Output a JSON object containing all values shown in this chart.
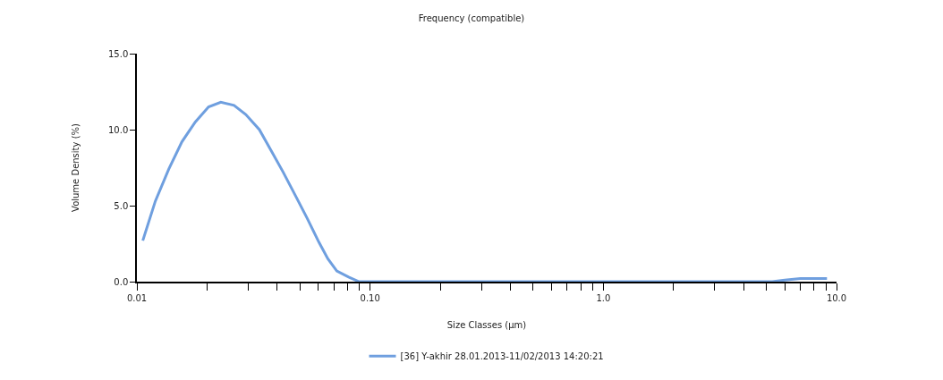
{
  "chart_data": {
    "type": "line",
    "title": "Frequency (compatible)",
    "xlabel": "Size Classes (µm)",
    "ylabel": "Volume Density (%)",
    "log": "x",
    "grid": false,
    "legend": "bottom",
    "marker": "none",
    "line_style": "solid",
    "xlim": [
      0.01,
      10
    ],
    "xticks": [
      {
        "value": 0.01,
        "label": "0.01"
      },
      {
        "value": 0.02,
        "label": null
      },
      {
        "value": 0.03,
        "label": null
      },
      {
        "value": 0.04,
        "label": null
      },
      {
        "value": 0.05,
        "label": null
      },
      {
        "value": 0.06,
        "label": null
      },
      {
        "value": 0.07,
        "label": null
      },
      {
        "value": 0.08,
        "label": null
      },
      {
        "value": 0.09,
        "label": null
      },
      {
        "value": 0.1,
        "label": "0.10"
      },
      {
        "value": 0.2,
        "label": null
      },
      {
        "value": 0.3,
        "label": null
      },
      {
        "value": 0.4,
        "label": null
      },
      {
        "value": 0.5,
        "label": null
      },
      {
        "value": 0.6,
        "label": null
      },
      {
        "value": 0.7,
        "label": null
      },
      {
        "value": 0.8,
        "label": null
      },
      {
        "value": 0.9,
        "label": null
      },
      {
        "value": 1,
        "label": "1.0"
      },
      {
        "value": 2,
        "label": null
      },
      {
        "value": 3,
        "label": null
      },
      {
        "value": 4,
        "label": null
      },
      {
        "value": 5,
        "label": null
      },
      {
        "value": 6,
        "label": null
      },
      {
        "value": 7,
        "label": null
      },
      {
        "value": 8,
        "label": null
      },
      {
        "value": 9,
        "label": null
      },
      {
        "value": 10,
        "label": "10.0"
      }
    ],
    "ylim": [
      0,
      15
    ],
    "yticks": [
      {
        "value": 0,
        "label": "0.0"
      },
      {
        "value": 5,
        "label": "5.0"
      },
      {
        "value": 10,
        "label": "10.0"
      },
      {
        "value": 15,
        "label": "15.0"
      }
    ],
    "x": [
      0.0106,
      0.012,
      0.0137,
      0.0156,
      0.0178,
      0.0203,
      0.0229,
      0.0261,
      0.0293,
      0.0335,
      0.0377,
      0.0424,
      0.0477,
      0.0536,
      0.0603,
      0.0659,
      0.072,
      0.0809,
      0.0897,
      0.098,
      0.2,
      0.5,
      1,
      2,
      5.3,
      6,
      7,
      8,
      9.1
    ],
    "series": [
      {
        "name": "[36] Y-akhir 28.01.2013-11/02/2013 14:20:21",
        "color": "#6f9fdf",
        "values": [
          2.7,
          5.3,
          7.4,
          9.2,
          10.5,
          11.5,
          11.8,
          11.6,
          11.0,
          10.0,
          8.6,
          7.2,
          5.7,
          4.2,
          2.6,
          1.5,
          0.7,
          0.3,
          0.0,
          0,
          0,
          0,
          0,
          0,
          0,
          0.1,
          0.2,
          0.2,
          0.2
        ]
      }
    ]
  }
}
